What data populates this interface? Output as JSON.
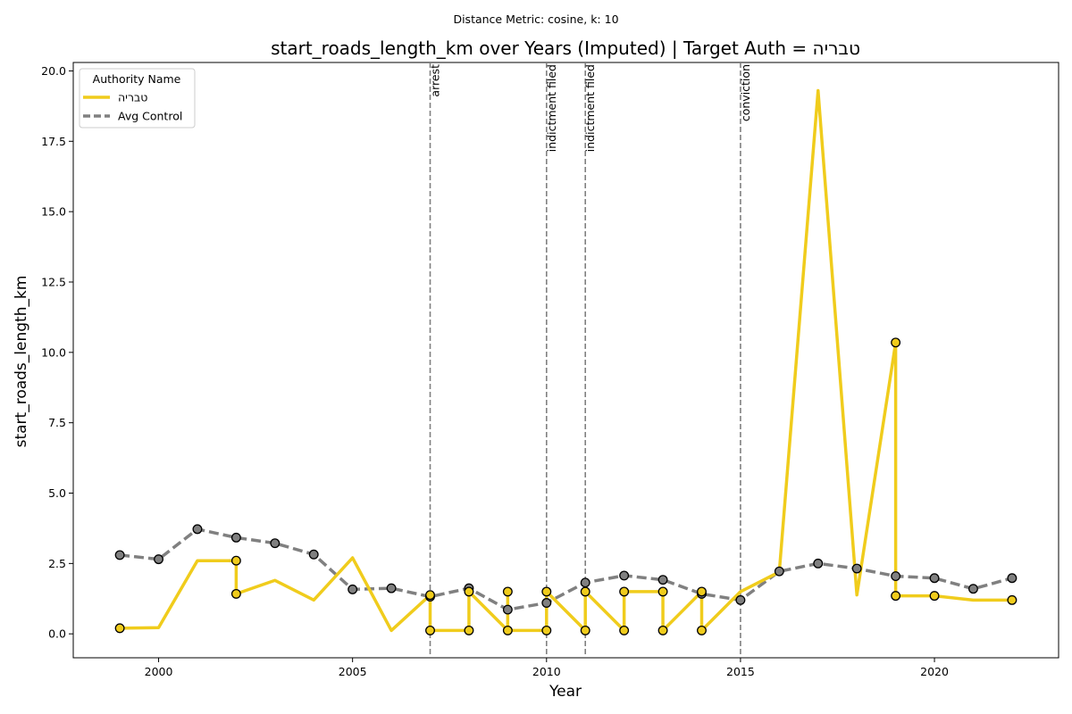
{
  "chart_data": {
    "type": "line",
    "suptitle": "Distance Metric: cosine, k: 10",
    "title": "start_roads_length_km over Years (Imputed) | Target Auth = טבריה",
    "xlabel": "Year",
    "ylabel": "start_roads_length_km",
    "xlim": [
      1997.8,
      2023.2
    ],
    "ylim": [
      -0.85,
      20.3
    ],
    "xticks": [
      2000,
      2005,
      2010,
      2015,
      2020
    ],
    "yticks": [
      0.0,
      2.5,
      5.0,
      7.5,
      10.0,
      12.5,
      15.0,
      17.5,
      20.0
    ],
    "ytick_labels": [
      "0.0",
      "2.5",
      "5.0",
      "7.5",
      "10.0",
      "12.5",
      "15.0",
      "17.5",
      "20.0"
    ],
    "legend": {
      "title": "Authority Name",
      "position": "upper left",
      "entries": [
        "טבריה",
        "Avg Control"
      ]
    },
    "events": [
      {
        "x": 2007,
        "label": "arrest"
      },
      {
        "x": 2010,
        "label": "indictment filed"
      },
      {
        "x": 2011,
        "label": "indictment filed"
      },
      {
        "x": 2015,
        "label": "conviction"
      }
    ],
    "series": [
      {
        "name": "טבריה",
        "color": "#f0cc1c",
        "style": "solid",
        "x": [
          1999,
          1999,
          2000,
          2001,
          2002,
          2002,
          2003,
          2004,
          2005,
          2006,
          2007,
          2007,
          2008,
          2008,
          2008,
          2009,
          2009,
          2009,
          2010,
          2010,
          2010,
          2011,
          2011,
          2012,
          2012,
          2013,
          2013,
          2014,
          2014,
          2015,
          2016,
          2017,
          2018,
          2019,
          2019,
          2020,
          2021,
          2022,
          2022
        ],
        "y": [
          0.2,
          0.2,
          0.22,
          2.6,
          2.6,
          1.42,
          1.9,
          1.2,
          2.7,
          0.12,
          1.38,
          0.12,
          0.12,
          0.12,
          1.5,
          0.12,
          1.5,
          0.12,
          0.12,
          1.5,
          1.5,
          0.12,
          1.5,
          0.12,
          1.5,
          1.5,
          0.12,
          1.5,
          0.12,
          1.5,
          2.2,
          19.3,
          1.38,
          10.35,
          1.35,
          1.35,
          1.2,
          1.2,
          1.2
        ],
        "markers": [
          [
            1999,
            0.2
          ],
          [
            2002,
            2.6
          ],
          [
            2002,
            1.42
          ],
          [
            2007,
            1.38
          ],
          [
            2007,
            0.12
          ],
          [
            2008,
            0.12
          ],
          [
            2008,
            1.5
          ],
          [
            2009,
            1.5
          ],
          [
            2009,
            0.12
          ],
          [
            2010,
            0.12
          ],
          [
            2010,
            1.5
          ],
          [
            2011,
            0.12
          ],
          [
            2011,
            1.5
          ],
          [
            2012,
            0.12
          ],
          [
            2012,
            1.5
          ],
          [
            2013,
            1.5
          ],
          [
            2013,
            0.12
          ],
          [
            2014,
            0.12
          ],
          [
            2014,
            1.5
          ],
          [
            2019,
            10.35
          ],
          [
            2019,
            1.35
          ],
          [
            2020,
            1.35
          ],
          [
            2022,
            1.2
          ]
        ]
      },
      {
        "name": "Avg Control",
        "color": "#808080",
        "style": "dashed",
        "x": [
          1999,
          2000,
          2001,
          2002,
          2003,
          2004,
          2005,
          2006,
          2007,
          2008,
          2009,
          2010,
          2011,
          2012,
          2013,
          2014,
          2015,
          2016,
          2017,
          2018,
          2019,
          2020,
          2021,
          2022
        ],
        "y": [
          2.8,
          2.65,
          3.72,
          3.42,
          3.22,
          2.82,
          1.58,
          1.62,
          1.32,
          1.62,
          0.86,
          1.1,
          1.82,
          2.07,
          1.92,
          1.42,
          1.2,
          2.22,
          2.5,
          2.32,
          2.05,
          1.98,
          1.6,
          1.98
        ],
        "markers": [
          [
            1999,
            2.8
          ],
          [
            2000,
            2.65
          ],
          [
            2001,
            3.72
          ],
          [
            2002,
            3.42
          ],
          [
            2003,
            3.22
          ],
          [
            2004,
            2.82
          ],
          [
            2005,
            1.58
          ],
          [
            2006,
            1.62
          ],
          [
            2007,
            1.32
          ],
          [
            2008,
            1.62
          ],
          [
            2009,
            0.86
          ],
          [
            2010,
            1.1
          ],
          [
            2011,
            1.82
          ],
          [
            2012,
            2.07
          ],
          [
            2013,
            1.92
          ],
          [
            2014,
            1.42
          ],
          [
            2015,
            1.2
          ],
          [
            2016,
            2.22
          ],
          [
            2017,
            2.5
          ],
          [
            2018,
            2.32
          ],
          [
            2019,
            2.05
          ],
          [
            2020,
            1.98
          ],
          [
            2021,
            1.6
          ],
          [
            2022,
            1.98
          ]
        ]
      }
    ]
  }
}
